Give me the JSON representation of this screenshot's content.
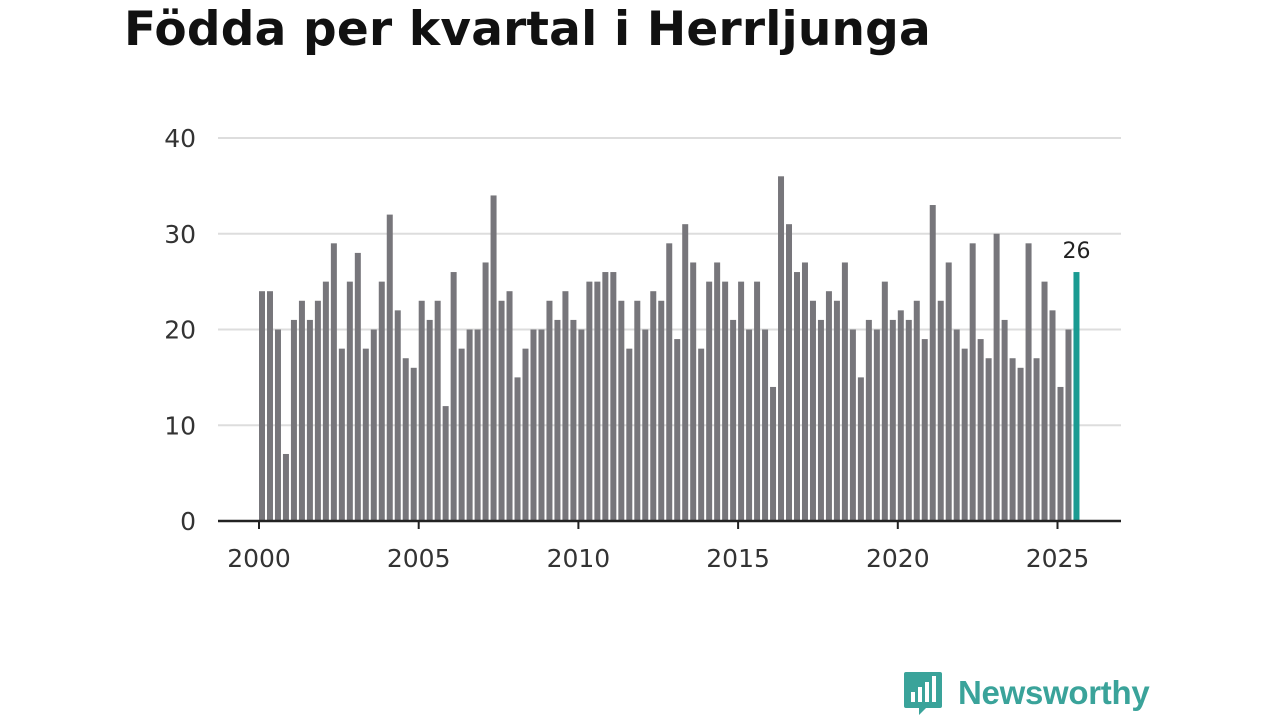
{
  "chart_data": {
    "type": "bar",
    "title": "Födda per kvartal i Herrljunga",
    "xlabel": "",
    "ylabel": "",
    "ylim": [
      0,
      40
    ],
    "yticks": [
      0,
      10,
      20,
      30,
      40
    ],
    "xticks": [
      2000,
      2005,
      2010,
      2015,
      2020,
      2025
    ],
    "x_start": 2000,
    "periods_per_year": 4,
    "grid": true,
    "colors": {
      "bar": "#77767b",
      "highlight": "#1a9b92",
      "grid": "#dddddd",
      "axis": "#222222",
      "text": "#333333"
    },
    "highlight_last": true,
    "last_value_label": "26",
    "values": [
      24,
      24,
      20,
      7,
      21,
      23,
      21,
      23,
      25,
      29,
      18,
      25,
      28,
      18,
      20,
      25,
      32,
      22,
      17,
      16,
      23,
      21,
      23,
      12,
      26,
      18,
      20,
      20,
      27,
      34,
      23,
      24,
      15,
      18,
      20,
      20,
      23,
      21,
      24,
      21,
      20,
      25,
      25,
      26,
      26,
      23,
      18,
      23,
      20,
      24,
      23,
      29,
      19,
      31,
      27,
      18,
      25,
      27,
      25,
      21,
      25,
      20,
      25,
      20,
      14,
      36,
      31,
      26,
      27,
      23,
      21,
      24,
      23,
      27,
      20,
      15,
      21,
      20,
      25,
      21,
      22,
      21,
      23,
      19,
      33,
      23,
      27,
      20,
      18,
      29,
      19,
      17,
      30,
      21,
      17,
      16,
      29,
      17,
      25,
      22,
      14,
      20,
      26
    ]
  },
  "brand": {
    "name": "Newsworthy",
    "color": "#3aa39a"
  }
}
